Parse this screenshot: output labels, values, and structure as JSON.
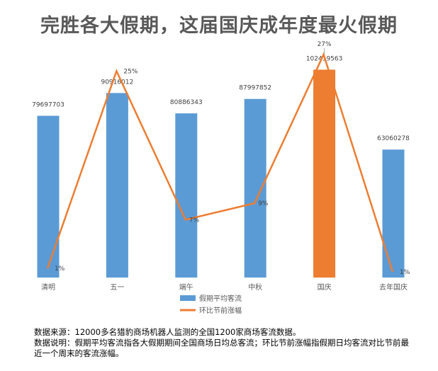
{
  "title": "完胜各大假期，这届国庆成年度最火假期",
  "chart_data": {
    "type": "bar",
    "categories": [
      "清明",
      "五一",
      "端午",
      "中秋",
      "国庆",
      "去年国庆"
    ],
    "series": [
      {
        "name": "假期平均客流",
        "type": "bar",
        "color": "#5B9BD5",
        "highlight_color": "#ED7D31",
        "highlight_index": 4,
        "values": [
          79697703,
          90916012,
          80886343,
          87997852,
          102419563,
          63060278
        ],
        "labels": [
          "79697703",
          "90916012",
          "80886343",
          "87997852",
          "102419563",
          "63060278"
        ]
      },
      {
        "name": "环比节前涨幅",
        "type": "line",
        "color": "#ED7D31",
        "axis": "secondary",
        "values": [
          1.1,
          25,
          7,
          9,
          27,
          0.7
        ],
        "labels": [
          "1%",
          "25%",
          "7%",
          "9%",
          "27%",
          "1%"
        ]
      }
    ],
    "ylim": [
      0,
      120000000
    ],
    "y2lim": [
      0,
      30
    ],
    "grid": false,
    "legend": "bottom"
  },
  "notes": [
    "数据来源：12000多名猎豹商场机器人监测的全国1200家商场客流数据。",
    "数据说明：假期平均客流指各大假期期间全国商场日均总客流；环比节前涨幅指假期日均客流对比节前最近一个周末的客流涨幅。"
  ]
}
